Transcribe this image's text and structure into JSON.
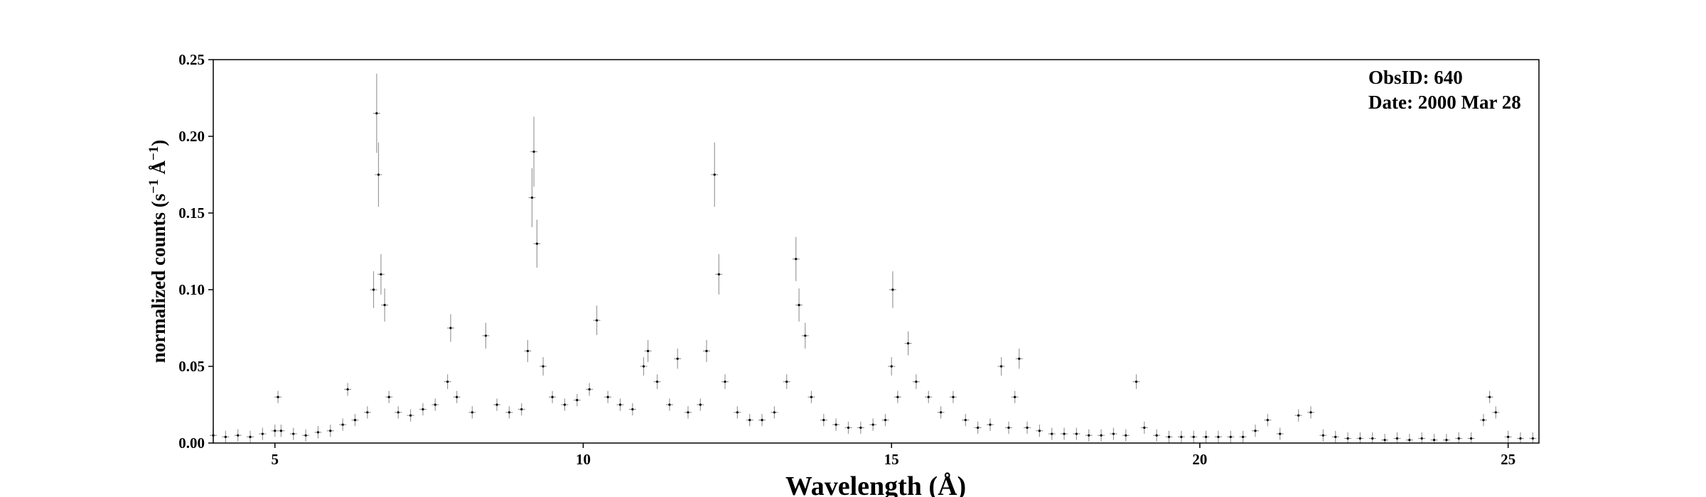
{
  "chart_data": {
    "type": "scatter",
    "title": "",
    "xlabel": "Wavelength (Å)",
    "ylabel_parts": [
      "normalized counts (s",
      "−1",
      " Å",
      "−1",
      ")"
    ],
    "xlim": [
      4.0,
      25.5
    ],
    "ylim": [
      0.0,
      0.25
    ],
    "xticks": [
      5,
      10,
      15,
      20,
      25
    ],
    "yticks": [
      0.0,
      0.05,
      0.1,
      0.15,
      0.2,
      0.25
    ],
    "ytick_labels": [
      "0.00",
      "0.05",
      "0.10",
      "0.15",
      "0.20",
      "0.25"
    ],
    "annotations": [
      "ObsID: 640",
      "Date: 2000 Mar 28"
    ],
    "grid": false,
    "marker_color": "#000000",
    "errorbar_color": "#9a9a9a",
    "series": [
      {
        "x": [
          4.0,
          4.2,
          4.4,
          4.6,
          4.8,
          5.0,
          5.05,
          5.1,
          5.3,
          5.5,
          5.7,
          5.9,
          6.1,
          6.18,
          6.3,
          6.5,
          6.6,
          6.65,
          6.68,
          6.72,
          6.78,
          6.85,
          7.0,
          7.2,
          7.4,
          7.6,
          7.8,
          7.85,
          7.95,
          8.2,
          8.42,
          8.6,
          8.8,
          9.0,
          9.1,
          9.17,
          9.2,
          9.25,
          9.35,
          9.5,
          9.7,
          9.9,
          10.1,
          10.22,
          10.4,
          10.6,
          10.8,
          10.98,
          11.05,
          11.2,
          11.4,
          11.53,
          11.7,
          11.9,
          12.0,
          12.13,
          12.2,
          12.3,
          12.5,
          12.7,
          12.9,
          13.1,
          13.3,
          13.45,
          13.5,
          13.6,
          13.7,
          13.9,
          14.1,
          14.3,
          14.5,
          14.7,
          14.9,
          15.0,
          15.02,
          15.1,
          15.27,
          15.4,
          15.6,
          15.8,
          16.0,
          16.2,
          16.4,
          16.6,
          16.78,
          16.9,
          17.0,
          17.07,
          17.2,
          17.4,
          17.6,
          17.8,
          18.0,
          18.2,
          18.4,
          18.6,
          18.8,
          18.97,
          19.1,
          19.3,
          19.5,
          19.7,
          19.9,
          20.1,
          20.3,
          20.5,
          20.7,
          20.9,
          21.1,
          21.3,
          21.6,
          21.8,
          22.0,
          22.2,
          22.4,
          22.6,
          22.8,
          23.0,
          23.2,
          23.4,
          23.6,
          23.8,
          24.0,
          24.2,
          24.4,
          24.6,
          24.7,
          24.8,
          25.0,
          25.2,
          25.4
        ],
        "y": [
          0.005,
          0.004,
          0.005,
          0.004,
          0.006,
          0.008,
          0.03,
          0.008,
          0.006,
          0.005,
          0.007,
          0.008,
          0.012,
          0.035,
          0.015,
          0.02,
          0.1,
          0.215,
          0.175,
          0.11,
          0.09,
          0.03,
          0.02,
          0.018,
          0.022,
          0.025,
          0.04,
          0.075,
          0.03,
          0.02,
          0.07,
          0.025,
          0.02,
          0.022,
          0.06,
          0.16,
          0.19,
          0.13,
          0.05,
          0.03,
          0.025,
          0.028,
          0.035,
          0.08,
          0.03,
          0.025,
          0.022,
          0.05,
          0.06,
          0.04,
          0.025,
          0.055,
          0.02,
          0.025,
          0.06,
          0.175,
          0.11,
          0.04,
          0.02,
          0.015,
          0.015,
          0.02,
          0.04,
          0.12,
          0.09,
          0.07,
          0.03,
          0.015,
          0.012,
          0.01,
          0.01,
          0.012,
          0.015,
          0.05,
          0.1,
          0.03,
          0.065,
          0.04,
          0.03,
          0.02,
          0.03,
          0.015,
          0.01,
          0.012,
          0.05,
          0.01,
          0.03,
          0.055,
          0.01,
          0.008,
          0.006,
          0.006,
          0.006,
          0.005,
          0.005,
          0.006,
          0.005,
          0.04,
          0.01,
          0.005,
          0.004,
          0.004,
          0.004,
          0.004,
          0.004,
          0.004,
          0.004,
          0.008,
          0.015,
          0.006,
          0.018,
          0.02,
          0.005,
          0.004,
          0.003,
          0.003,
          0.003,
          0.002,
          0.003,
          0.002,
          0.003,
          0.002,
          0.002,
          0.003,
          0.003,
          0.015,
          0.03,
          0.02,
          0.004,
          0.003,
          0.003
        ]
      }
    ]
  }
}
